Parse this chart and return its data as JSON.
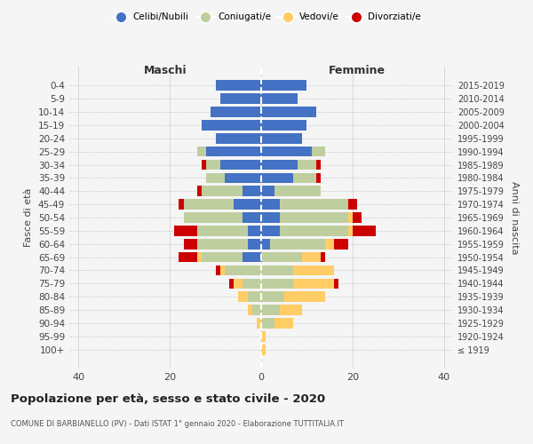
{
  "age_groups": [
    "100+",
    "95-99",
    "90-94",
    "85-89",
    "80-84",
    "75-79",
    "70-74",
    "65-69",
    "60-64",
    "55-59",
    "50-54",
    "45-49",
    "40-44",
    "35-39",
    "30-34",
    "25-29",
    "20-24",
    "15-19",
    "10-14",
    "5-9",
    "0-4"
  ],
  "birth_years": [
    "≤ 1919",
    "1920-1924",
    "1925-1929",
    "1930-1934",
    "1935-1939",
    "1940-1944",
    "1945-1949",
    "1950-1954",
    "1955-1959",
    "1960-1964",
    "1965-1969",
    "1970-1974",
    "1975-1979",
    "1980-1984",
    "1985-1989",
    "1990-1994",
    "1995-1999",
    "2000-2004",
    "2005-2009",
    "2010-2014",
    "2015-2019"
  ],
  "male": {
    "celibi": [
      0,
      0,
      0,
      0,
      0,
      0,
      0,
      4,
      3,
      3,
      4,
      6,
      4,
      8,
      9,
      12,
      10,
      13,
      11,
      9,
      10
    ],
    "coniugati": [
      0,
      0,
      0,
      2,
      3,
      4,
      8,
      9,
      11,
      11,
      13,
      11,
      9,
      4,
      3,
      2,
      0,
      0,
      0,
      0,
      0
    ],
    "vedovi": [
      0,
      0,
      1,
      1,
      2,
      2,
      1,
      1,
      0,
      0,
      0,
      0,
      0,
      0,
      0,
      0,
      0,
      0,
      0,
      0,
      0
    ],
    "divorziati": [
      0,
      0,
      0,
      0,
      0,
      1,
      1,
      4,
      3,
      5,
      0,
      1,
      1,
      0,
      1,
      0,
      0,
      0,
      0,
      0,
      0
    ]
  },
  "female": {
    "nubili": [
      0,
      0,
      0,
      0,
      0,
      0,
      0,
      0,
      2,
      4,
      4,
      4,
      3,
      7,
      8,
      11,
      9,
      10,
      12,
      8,
      10
    ],
    "coniugate": [
      0,
      0,
      3,
      4,
      5,
      7,
      7,
      9,
      12,
      15,
      15,
      15,
      10,
      5,
      4,
      3,
      0,
      0,
      0,
      0,
      0
    ],
    "vedove": [
      1,
      1,
      4,
      5,
      9,
      9,
      9,
      4,
      2,
      1,
      1,
      0,
      0,
      0,
      0,
      0,
      0,
      0,
      0,
      0,
      0
    ],
    "divorziate": [
      0,
      0,
      0,
      0,
      0,
      1,
      0,
      1,
      3,
      5,
      2,
      2,
      0,
      1,
      1,
      0,
      0,
      0,
      0,
      0,
      0
    ]
  },
  "colors": {
    "celibi_nubili": "#4472C4",
    "coniugati_e": "#BFCE9E",
    "vedovi_e": "#FFCC66",
    "divorziati_e": "#CC0000"
  },
  "xlim": [
    -42,
    42
  ],
  "xticks": [
    -40,
    -20,
    0,
    20,
    40
  ],
  "xticklabels": [
    "40",
    "20",
    "0",
    "20",
    "40"
  ],
  "title": "Popolazione per età, sesso e stato civile - 2020",
  "subtitle": "COMUNE DI BARBIANELLO (PV) - Dati ISTAT 1° gennaio 2020 - Elaborazione TUTTITALIA.IT",
  "ylabel_left": "Fasce di età",
  "ylabel_right": "Anni di nascita",
  "bg_color": "#f5f5f5",
  "grid_color": "#cccccc"
}
